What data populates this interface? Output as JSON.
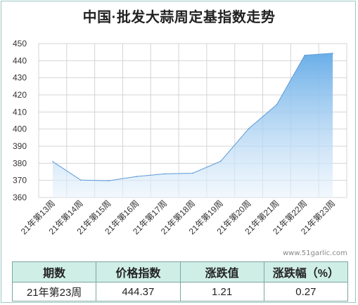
{
  "title": "中国·批发大蒜周定基指数走势",
  "watermark": "www.51garlic.com",
  "colors": {
    "area_top": "#6aaee8",
    "area_bottom": "#e9f3fc",
    "line": "#5b9ad8",
    "grid": "#d4d4d4",
    "header_bg": "#cfeee6",
    "border": "#7aa7a1"
  },
  "chart_data": {
    "type": "area",
    "title": "中国·批发大蒜周定基指数走势",
    "xlabel": "",
    "ylabel": "",
    "categories": [
      "21年第13周",
      "21年第14周",
      "21年第15周",
      "21年第16周",
      "21年第17周",
      "21年第18周",
      "21年第19周",
      "21年第20周",
      "21年第21周",
      "21年第22周",
      "21年第23周"
    ],
    "series": [
      {
        "values": [
          381,
          370.2,
          369.8,
          372.3,
          373.8,
          374.2,
          381.2,
          400.3,
          414.3,
          443.2,
          444.37
        ]
      }
    ],
    "ylim": [
      360,
      450
    ],
    "yticks": [
      360,
      370,
      380,
      390,
      400,
      410,
      420,
      430,
      440,
      450
    ],
    "grid": true,
    "legend": "none"
  },
  "table": {
    "headers": [
      "期数",
      "价格指数",
      "涨跌值",
      "涨跌幅（%）"
    ],
    "row": [
      "21年第23周",
      "444.37",
      "1.21",
      "0.27"
    ]
  }
}
